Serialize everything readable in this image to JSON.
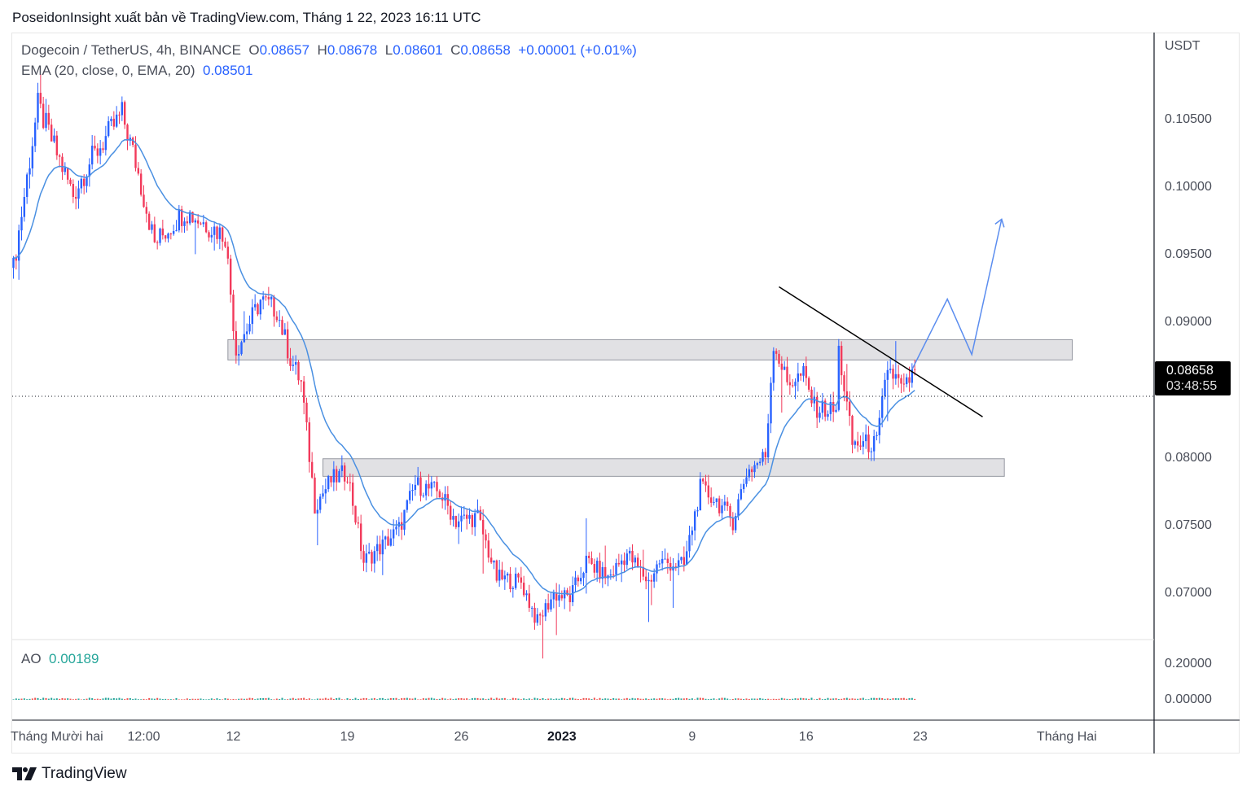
{
  "publish_line": "PoseidonInsight xuất bản về TradingView.com, Tháng 1 22, 2023 16:11 UTC",
  "symbol": "Dogecoin / TetherUS, 4h, BINANCE",
  "ohlc": {
    "o_label": "O",
    "o": "0.08657",
    "h_label": "H",
    "h": "0.08678",
    "l_label": "L",
    "l": "0.08601",
    "c_label": "C",
    "c": "0.08658",
    "change": "+0.00001 (+0.01%)"
  },
  "ema": {
    "label": "EMA (20, close, 0, EMA, 20)",
    "value": "0.08501"
  },
  "ao": {
    "label": "AO",
    "value": "0.00189",
    "ticks": [
      "0.20000",
      "0.00000"
    ]
  },
  "currency": "USDT",
  "last_price": "0.08658",
  "countdown": "03:48:55",
  "colors": {
    "up": "#2962ff",
    "down": "#f23a5b",
    "ema": "#4a90e2",
    "zone": "#d9dadd",
    "trend": "#000000",
    "projection": "#5b8def"
  },
  "chart_data": {
    "type": "candlestick",
    "title": "Dogecoin / TetherUS, 4h, BINANCE",
    "ylabel": "USDT",
    "ylim": [
      0.0665,
      0.1095
    ],
    "yticks": [
      "0.10500",
      "0.10000",
      "0.09500",
      "0.09000",
      "0.08000",
      "0.07500",
      "0.07000"
    ],
    "ytick_values": [
      0.105,
      0.1,
      0.095,
      0.09,
      0.08,
      0.075,
      0.07
    ],
    "xticks": [
      {
        "label": "Tháng Mười hai",
        "candle": 16
      },
      {
        "label": "12:00",
        "candle": 48
      },
      {
        "label": "12",
        "candle": 81
      },
      {
        "label": "19",
        "candle": 123
      },
      {
        "label": "26",
        "candle": 165
      },
      {
        "label": "2023",
        "candle": 202
      },
      {
        "label": "9",
        "candle": 250
      },
      {
        "label": "16",
        "candle": 292
      },
      {
        "label": "23",
        "candle": 334
      },
      {
        "label": "Tháng Hai",
        "candle": 388
      }
    ],
    "total_candles": 333,
    "close_keypoints": [
      [
        0,
        0.0941
      ],
      [
        9,
        0.1061
      ],
      [
        22,
        0.0995
      ],
      [
        28,
        0.1019
      ],
      [
        40,
        0.1055
      ],
      [
        45,
        0.1019
      ],
      [
        52,
        0.0959
      ],
      [
        63,
        0.0983
      ],
      [
        78,
        0.0965
      ],
      [
        82,
        0.088
      ],
      [
        91,
        0.0917
      ],
      [
        97,
        0.091
      ],
      [
        102,
        0.0874
      ],
      [
        106,
        0.0856
      ],
      [
        111,
        0.0766
      ],
      [
        117,
        0.0784
      ],
      [
        123,
        0.079
      ],
      [
        129,
        0.0724
      ],
      [
        136,
        0.0736
      ],
      [
        142,
        0.0748
      ],
      [
        148,
        0.0781
      ],
      [
        157,
        0.0775
      ],
      [
        163,
        0.0754
      ],
      [
        171,
        0.0757
      ],
      [
        178,
        0.0712
      ],
      [
        187,
        0.0709
      ],
      [
        193,
        0.0679
      ],
      [
        199,
        0.07
      ],
      [
        205,
        0.0697
      ],
      [
        211,
        0.0724
      ],
      [
        219,
        0.0712
      ],
      [
        226,
        0.073
      ],
      [
        234,
        0.0709
      ],
      [
        238,
        0.0724
      ],
      [
        247,
        0.0721
      ],
      [
        253,
        0.0778
      ],
      [
        259,
        0.0769
      ],
      [
        265,
        0.0754
      ],
      [
        270,
        0.079
      ],
      [
        277,
        0.0802
      ],
      [
        280,
        0.0886
      ],
      [
        285,
        0.0856
      ],
      [
        291,
        0.0862
      ],
      [
        295,
        0.0838
      ],
      [
        303,
        0.0835
      ],
      [
        304,
        0.088
      ],
      [
        309,
        0.0811
      ],
      [
        318,
        0.0811
      ],
      [
        322,
        0.0868
      ],
      [
        328,
        0.085
      ],
      [
        332,
        0.08658
      ]
    ],
    "ema_period": 20,
    "zones": [
      {
        "from_candle": 79,
        "to_candle": 390,
        "low": 0.0873,
        "high": 0.0888
      },
      {
        "from_candle": 114,
        "to_candle": 365,
        "low": 0.0787,
        "high": 0.08
      }
    ],
    "trendline": [
      [
        282,
        0.0927
      ],
      [
        357,
        0.0831
      ]
    ],
    "projection": [
      [
        331,
        0.0866
      ],
      [
        344,
        0.0918
      ],
      [
        353,
        0.0877
      ],
      [
        364,
        0.0977
      ]
    ],
    "last_price_value": 0.08658
  },
  "brand": "TradingView"
}
